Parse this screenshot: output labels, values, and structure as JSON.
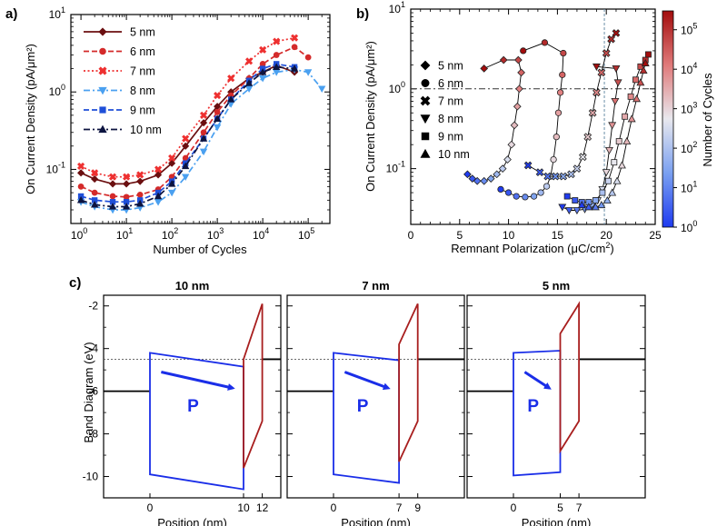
{
  "chart_data": [
    {
      "id": "a",
      "type": "line",
      "panel_label": "a)",
      "xlabel": "Number of Cycles",
      "ylabel": "On Current Density (pA/μm²)",
      "xscale": "log",
      "yscale": "log",
      "xlim": [
        0.6,
        300000
      ],
      "ylim": [
        0.02,
        10
      ],
      "x_ticks": [
        "10",
        "10",
        "10",
        "10",
        "10",
        "10"
      ],
      "x_tick_exponents": [
        "0",
        "1",
        "2",
        "3",
        "4",
        "5"
      ],
      "y_ticks": [
        "10",
        "10",
        "10"
      ],
      "y_tick_exponents": [
        "-1",
        "0",
        "1"
      ],
      "legend_position": "top-left",
      "series": [
        {
          "name": "5 nm",
          "color": "#6b0f10",
          "marker": "diamond",
          "line": "solid",
          "x": [
            1,
            2,
            5,
            10,
            20,
            50,
            100,
            200,
            500,
            1000,
            2000,
            5000,
            10000,
            20000,
            50000
          ],
          "y": [
            0.09,
            0.075,
            0.065,
            0.065,
            0.07,
            0.085,
            0.12,
            0.2,
            0.4,
            0.65,
            1.0,
            1.5,
            1.8,
            2.2,
            1.8
          ]
        },
        {
          "name": "6 nm",
          "color": "#d42a2a",
          "marker": "circle",
          "line": "dashed",
          "x": [
            1,
            2,
            5,
            10,
            20,
            50,
            100,
            200,
            500,
            1000,
            2000,
            5000,
            10000,
            20000,
            50000,
            100000
          ],
          "y": [
            0.06,
            0.05,
            0.045,
            0.044,
            0.047,
            0.055,
            0.08,
            0.14,
            0.3,
            0.55,
            0.9,
            1.5,
            2.3,
            3.0,
            3.8,
            2.8
          ]
        },
        {
          "name": "7 nm",
          "color": "#ee3030",
          "marker": "cross",
          "line": "dotted",
          "x": [
            1,
            2,
            5,
            10,
            20,
            50,
            100,
            200,
            500,
            1000,
            2000,
            5000,
            10000,
            20000,
            50000
          ],
          "y": [
            0.11,
            0.09,
            0.08,
            0.08,
            0.085,
            0.1,
            0.14,
            0.25,
            0.5,
            0.9,
            1.5,
            2.5,
            3.5,
            4.5,
            5.0
          ]
        },
        {
          "name": "8 nm",
          "color": "#4aa0f0",
          "marker": "triangle-down",
          "line": "dashdot",
          "x": [
            1,
            2,
            5,
            10,
            20,
            50,
            100,
            200,
            500,
            1000,
            2000,
            5000,
            10000,
            20000,
            50000,
            100000,
            200000
          ],
          "y": [
            0.038,
            0.033,
            0.03,
            0.03,
            0.032,
            0.038,
            0.05,
            0.08,
            0.17,
            0.35,
            0.7,
            1.1,
            1.5,
            1.8,
            1.95,
            1.8,
            1.1
          ]
        },
        {
          "name": "9 nm",
          "color": "#1f4fd8",
          "marker": "square",
          "line": "dashed",
          "x": [
            1,
            2,
            5,
            10,
            20,
            50,
            100,
            200,
            500,
            1000,
            2000,
            5000,
            10000,
            20000,
            50000
          ],
          "y": [
            0.045,
            0.04,
            0.038,
            0.038,
            0.04,
            0.05,
            0.07,
            0.12,
            0.25,
            0.45,
            0.8,
            1.4,
            2.0,
            2.3,
            2.1
          ]
        },
        {
          "name": "10 nm",
          "color": "#0d1440",
          "marker": "triangle-up",
          "line": "dashdot",
          "x": [
            1,
            2,
            5,
            10,
            20,
            50,
            100,
            200,
            500,
            1000,
            2000,
            5000,
            10000,
            20000,
            50000
          ],
          "y": [
            0.04,
            0.035,
            0.033,
            0.033,
            0.036,
            0.045,
            0.065,
            0.11,
            0.25,
            0.45,
            0.8,
            1.3,
            1.8,
            2.1,
            2.0
          ]
        }
      ]
    },
    {
      "id": "b",
      "type": "scatter",
      "panel_label": "b)",
      "xlabel": "Remnant Polarization (μC/cm",
      "xlabel_sup": "2",
      "xlabel_end": ")",
      "ylabel": "On Current Density (pA/μm²)",
      "yscale": "log",
      "xlim": [
        0,
        25
      ],
      "ylim": [
        0.02,
        10
      ],
      "x_ticks": [
        "0",
        "5",
        "10",
        "15",
        "20",
        "25"
      ],
      "y_ticks": [
        "10",
        "10",
        "10"
      ],
      "y_tick_exponents": [
        "-1",
        "0",
        "1"
      ],
      "hline_y": 1.0,
      "vline_x": 19.8,
      "legend_position": "top-left",
      "legend": [
        {
          "label": "5 nm",
          "marker": "diamond"
        },
        {
          "label": "6 nm",
          "marker": "circle"
        },
        {
          "label": "7 nm",
          "marker": "cross"
        },
        {
          "label": "8 nm",
          "marker": "triangle-down"
        },
        {
          "label": "9 nm",
          "marker": "square"
        },
        {
          "label": "10 nm",
          "marker": "triangle-up"
        }
      ],
      "colorbar": {
        "label": "Number of Cycles",
        "scale": "log",
        "range": [
          1,
          300000
        ],
        "ticks": [
          "10",
          "10",
          "10",
          "10",
          "10",
          "10"
        ],
        "tick_exponents": [
          "0",
          "1",
          "2",
          "3",
          "4",
          "5"
        ]
      },
      "series": [
        {
          "name": "5 nm",
          "marker": "diamond",
          "x": [
            5.8,
            6.3,
            6.8,
            7.5,
            8.2,
            8.8,
            9.4,
            9.9,
            10.3,
            10.6,
            10.9,
            11.1,
            11.3,
            11.0,
            9.5,
            7.5
          ],
          "y": [
            0.085,
            0.075,
            0.07,
            0.07,
            0.075,
            0.085,
            0.1,
            0.13,
            0.2,
            0.35,
            0.6,
            1.0,
            1.6,
            2.3,
            2.3,
            1.8
          ]
        },
        {
          "name": "6 nm",
          "marker": "circle",
          "x": [
            9.2,
            10.0,
            10.8,
            11.7,
            12.6,
            13.3,
            13.9,
            14.3,
            14.6,
            14.9,
            15.1,
            15.3,
            15.5,
            15.6,
            13.7,
            11.5
          ],
          "y": [
            0.055,
            0.05,
            0.045,
            0.044,
            0.045,
            0.05,
            0.06,
            0.08,
            0.13,
            0.25,
            0.5,
            0.9,
            1.5,
            2.8,
            3.8,
            3.0
          ]
        },
        {
          "name": "7 nm",
          "marker": "cross",
          "x": [
            12.0,
            13.2,
            14.0,
            14.8,
            15.6,
            16.4,
            17.0,
            17.6,
            18.1,
            18.6,
            19.0,
            19.5,
            20.0,
            20.5,
            21.0
          ],
          "y": [
            0.11,
            0.09,
            0.08,
            0.08,
            0.08,
            0.085,
            0.1,
            0.14,
            0.25,
            0.5,
            0.9,
            1.6,
            2.8,
            4.2,
            5.0
          ]
        },
        {
          "name": "8 nm",
          "marker": "triangle-down",
          "x": [
            15.5,
            16.2,
            17.0,
            17.8,
            18.5,
            19.1,
            19.6,
            20.0,
            20.3,
            20.6,
            20.9,
            21.2,
            21.0,
            19.0
          ],
          "y": [
            0.033,
            0.03,
            0.03,
            0.031,
            0.034,
            0.04,
            0.055,
            0.09,
            0.17,
            0.35,
            0.7,
            1.2,
            1.8,
            1.9
          ]
        },
        {
          "name": "9 nm",
          "marker": "square",
          "x": [
            16.0,
            16.8,
            17.5,
            18.2,
            18.9,
            19.6,
            20.2,
            20.8,
            21.3,
            21.9,
            22.5,
            23.0,
            23.5,
            24.0,
            24.3
          ],
          "y": [
            0.045,
            0.04,
            0.038,
            0.038,
            0.04,
            0.05,
            0.07,
            0.12,
            0.22,
            0.45,
            0.8,
            1.3,
            1.9,
            2.3,
            2.7
          ]
        },
        {
          "name": "10 nm",
          "marker": "triangle-up",
          "x": [
            17.5,
            18.2,
            18.9,
            19.5,
            20.1,
            20.6,
            21.1,
            21.6,
            22.1,
            22.6,
            23.1,
            23.5,
            23.8,
            24.0
          ],
          "y": [
            0.035,
            0.033,
            0.033,
            0.035,
            0.04,
            0.05,
            0.07,
            0.11,
            0.22,
            0.42,
            0.75,
            1.2,
            1.7,
            2.1
          ]
        }
      ]
    },
    {
      "id": "c",
      "type": "line",
      "panel_label": "c)",
      "ylabel": "Band Diagram (eV)",
      "xlabel": "Position (nm)",
      "ylim": [
        -11,
        -1.5
      ],
      "y_ticks": [
        "-2",
        "-4",
        "-6",
        "-8",
        "-10"
      ],
      "y_tick_values": [
        -2,
        -4,
        -6,
        -8,
        -10
      ],
      "polarization_label": "P",
      "fermi_level": -4.5,
      "subpanels": [
        {
          "title": "10 nm",
          "t": 10,
          "x_ticks": [
            "0",
            "10",
            "12"
          ],
          "x_tick_values": [
            0,
            10,
            12
          ],
          "ferro": {
            "top": [
              -4.2,
              -4.85
            ],
            "bottom": [
              -9.9,
              -10.6
            ]
          },
          "oxide": {
            "top": [
              -4.5,
              -1.9
            ],
            "bottom": [
              -9.6,
              -7.4
            ]
          },
          "metal_left": -6.0,
          "metal_right": -4.5
        },
        {
          "title": "7 nm",
          "t": 7,
          "x_ticks": [
            "0",
            "7",
            "9"
          ],
          "x_tick_values": [
            0,
            7,
            9
          ],
          "ferro": {
            "top": [
              -4.2,
              -4.55
            ],
            "bottom": [
              -9.9,
              -10.3
            ]
          },
          "oxide": {
            "top": [
              -3.8,
              -1.9
            ],
            "bottom": [
              -9.3,
              -7.4
            ]
          },
          "metal_left": -6.0,
          "metal_right": -4.5
        },
        {
          "title": "5 nm",
          "t": 5,
          "x_ticks": [
            "0",
            "5",
            "7"
          ],
          "x_tick_values": [
            0,
            5,
            7
          ],
          "ferro": {
            "top": [
              -4.2,
              -4.1
            ],
            "bottom": [
              -9.95,
              -9.8
            ]
          },
          "oxide": {
            "top": [
              -3.3,
              -1.9
            ],
            "bottom": [
              -8.8,
              -7.4
            ]
          },
          "metal_left": -6.0,
          "metal_right": -4.5
        }
      ]
    }
  ]
}
